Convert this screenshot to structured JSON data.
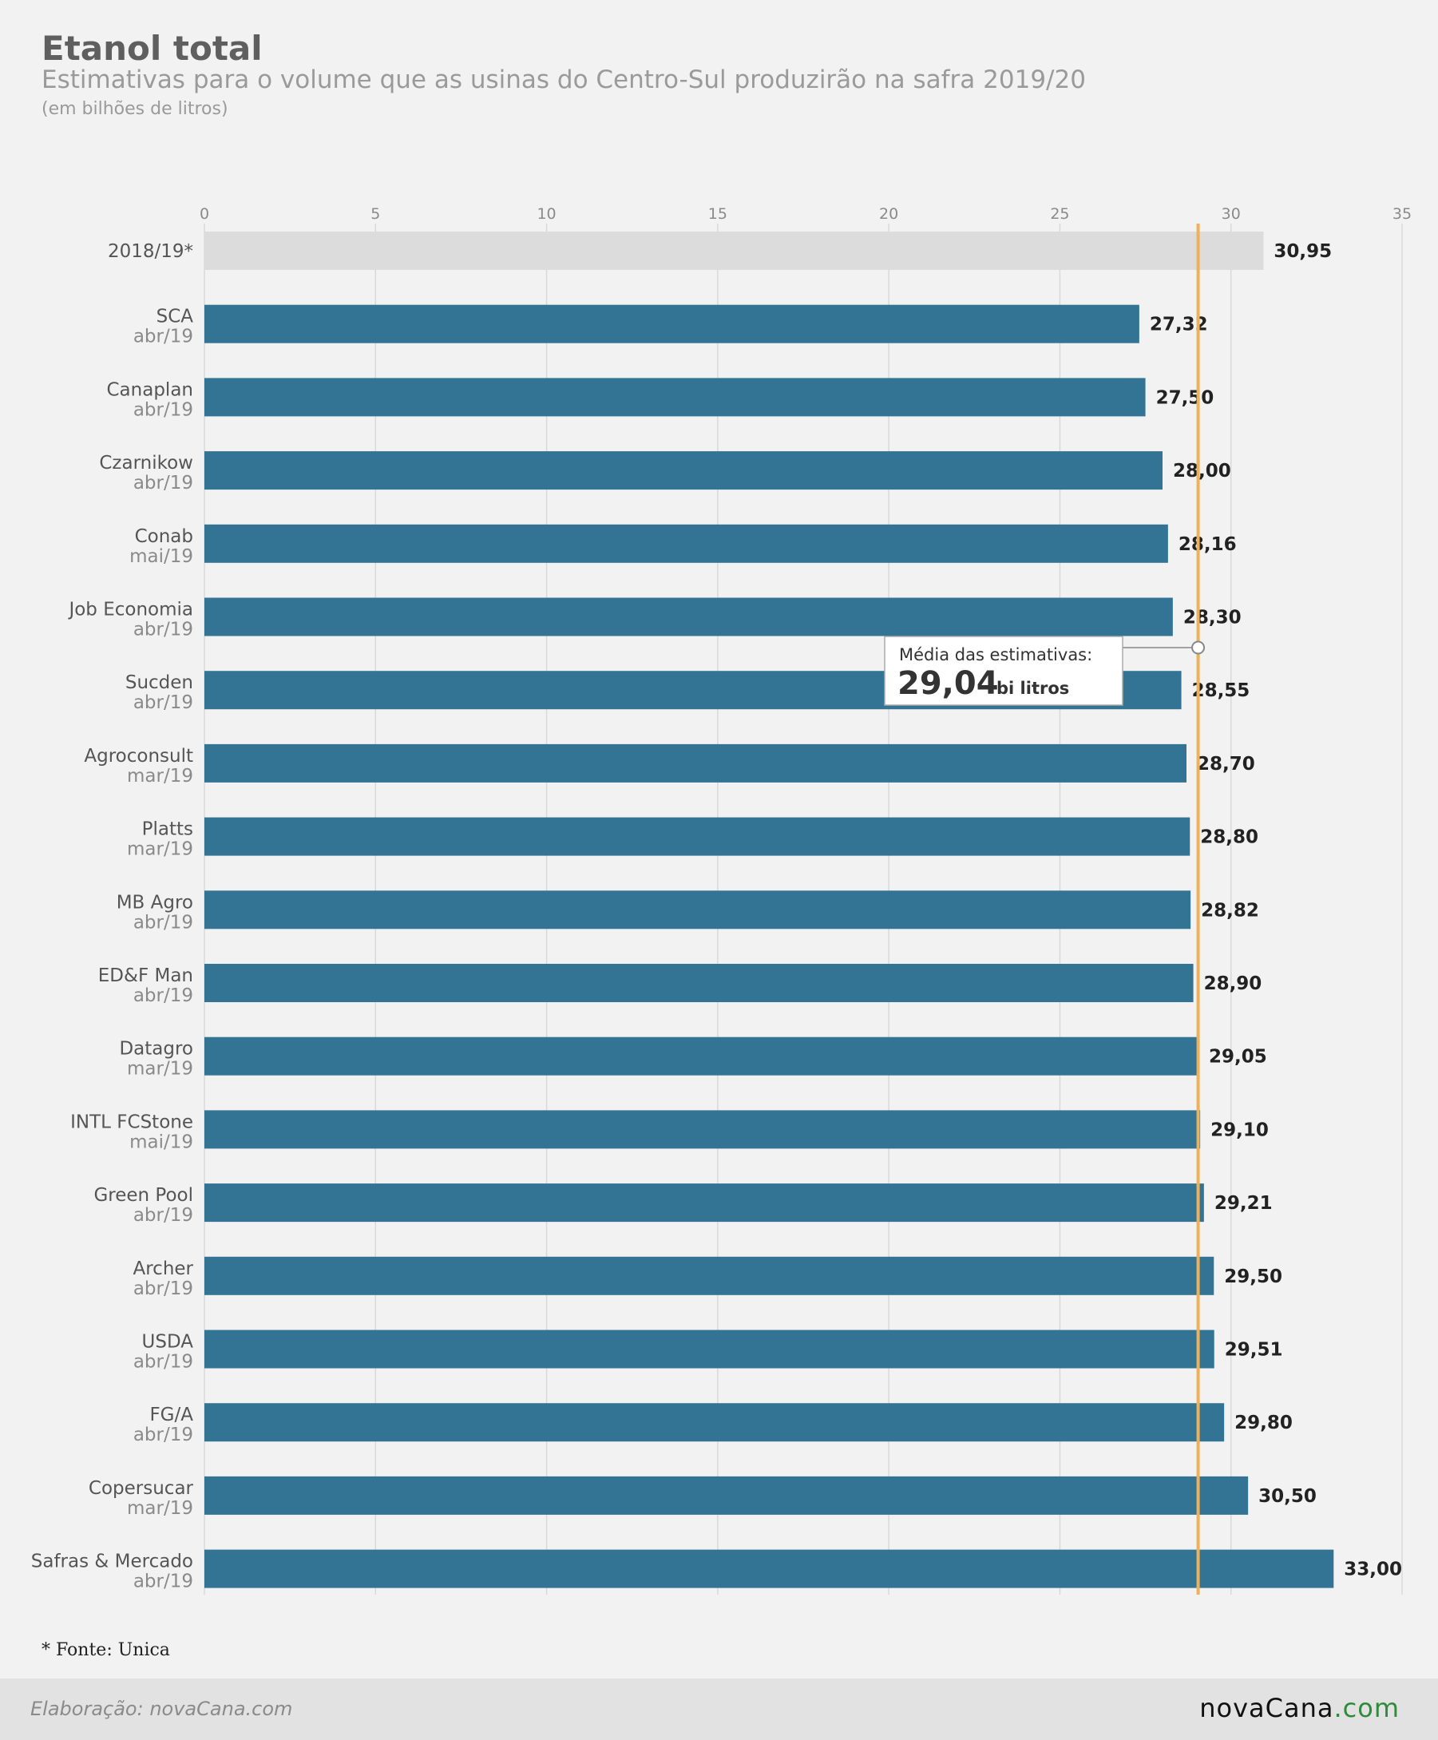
{
  "header": {
    "title": "Etanol total",
    "subtitle": "Estimativas para o volume que as usinas do Centro-Sul produzirão na safra 2019/20",
    "unit": "(em bilhões de litros)"
  },
  "footer": {
    "note": "* Fonte: Unica",
    "credit": "Elaboração: novaCana.com",
    "logo_main": "novaCana",
    "logo_tld": ".com"
  },
  "colors": {
    "bar": "#337494",
    "reference_bar": "#dcdcdc",
    "average_line": "#f0b05a",
    "grid": "#d9d9d9",
    "tick_text": "#8a8a8a",
    "category_text": "#555555",
    "date_text": "#8a8a8a",
    "value_text": "#222222"
  },
  "chart_data": {
    "type": "bar",
    "orientation": "horizontal",
    "title": "Etanol total",
    "xlim": [
      0,
      35
    ],
    "xticks": [
      "0",
      "5",
      "10",
      "15",
      "20",
      "25",
      "30",
      "35"
    ],
    "xtick_values": [
      0,
      5,
      10,
      15,
      20,
      25,
      30,
      35
    ],
    "grid": true,
    "categories": [
      "2018/19*",
      "SCA",
      "Canaplan",
      "Czarnikow",
      "Conab",
      "Job Economia",
      "Sucden",
      "Agroconsult",
      "Platts",
      "MB Agro",
      "ED&F Man",
      "Datagro",
      "INTL FCStone",
      "Green Pool",
      "Archer",
      "USDA",
      "FG/A",
      "Copersucar",
      "Safras & Mercado"
    ],
    "dates": [
      "",
      "abr/19",
      "abr/19",
      "abr/19",
      "mai/19",
      "abr/19",
      "abr/19",
      "mar/19",
      "mar/19",
      "abr/19",
      "abr/19",
      "mar/19",
      "mai/19",
      "abr/19",
      "abr/19",
      "abr/19",
      "abr/19",
      "mar/19",
      "abr/19"
    ],
    "values": [
      30.95,
      27.32,
      27.5,
      28.0,
      28.16,
      28.3,
      28.55,
      28.7,
      28.8,
      28.82,
      28.9,
      29.05,
      29.1,
      29.21,
      29.5,
      29.51,
      29.8,
      30.5,
      33.0
    ],
    "value_labels": [
      "30,95",
      "27,32",
      "27,50",
      "28,00",
      "28,16",
      "28,30",
      "28,55",
      "28,70",
      "28,80",
      "28,82",
      "28,90",
      "29,05",
      "29,10",
      "29,21",
      "29,50",
      "29,51",
      "29,80",
      "30,50",
      "33,00"
    ],
    "average": {
      "value": 29.04,
      "caption": "Média das estimativas:",
      "value_label": "29,04",
      "unit_label": "bi litros"
    }
  }
}
